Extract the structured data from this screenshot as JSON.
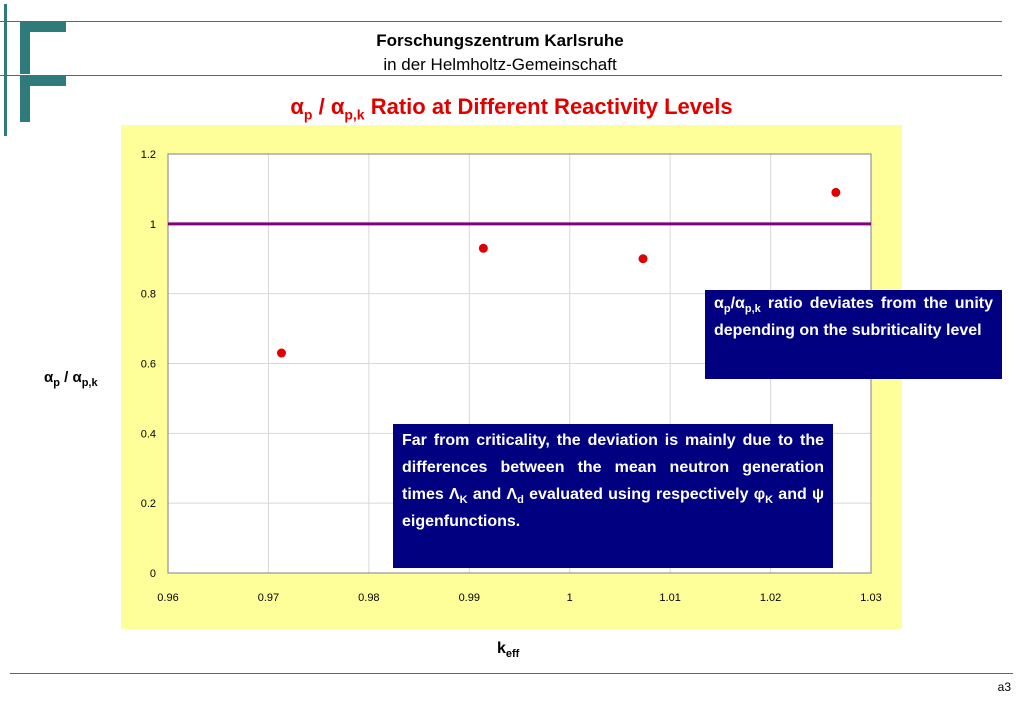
{
  "header": {
    "line1": "Forschungszentrum Karlsruhe",
    "line2": "in der Helmholtz-Gemeinschaft"
  },
  "title": {
    "alpha1": "α",
    "sub1": "p",
    "slash": " / ",
    "alpha2": "α",
    "sub2": "p,k",
    "rest": " Ratio at Different Reactivity Levels"
  },
  "y_axis_label": {
    "main": "α",
    "sub1": "p",
    "slash": " / α",
    "sub2": "p,k"
  },
  "x_axis_label": {
    "main": "k",
    "sub": "eff"
  },
  "note_top": {
    "a1": "α",
    "s1": "p",
    "a2": "/α",
    "s2": "p,k",
    "text": " ratio deviates from the unity depending on the subriticality level"
  },
  "note_bottom": {
    "t1": "Far from criticality, the deviation is mainly due to the differences between the mean neutron generation times ",
    "lam1": "Λ",
    "lam1_sub": "K",
    "and1": " and ",
    "lam2": "Λ",
    "lam2_sub": "d",
    "t2": " evaluated using respectively ",
    "phi": "φ",
    "phi_sub": "K",
    "and2": " and ",
    "psi": "ψ",
    "t3": " eigenfunctions."
  },
  "footer": {
    "code": "a3"
  },
  "colors": {
    "panel_bg": "#ffff99",
    "points": "#e00000",
    "unity_line": "#800080",
    "notes_bg": "#000080",
    "title": "#e00000",
    "rules": "#2f7a7a"
  },
  "chart_data": {
    "type": "scatter",
    "x_ticks": [
      "0.96",
      "0.97",
      "0.98",
      "0.99",
      "1",
      "1.01",
      "1.02",
      "1.03"
    ],
    "y_ticks": [
      "0",
      "0.2",
      "0.4",
      "0.6",
      "0.8",
      "1",
      "1.2"
    ],
    "xlim": [
      0.96,
      1.03
    ],
    "ylim": [
      0,
      1.2
    ],
    "grid": true,
    "series": [
      {
        "x": [
          0.9713,
          0.9914,
          1.0073,
          1.0265
        ],
        "y": [
          0.63,
          0.93,
          0.9,
          1.09
        ]
      }
    ],
    "reference_line": {
      "y": 1
    }
  }
}
